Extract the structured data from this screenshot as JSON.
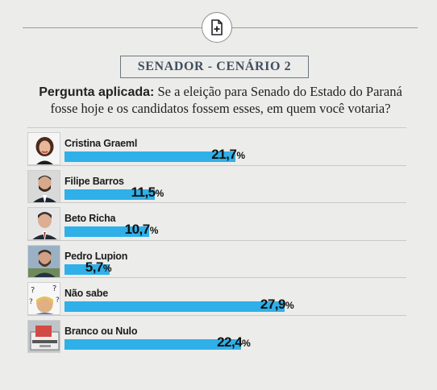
{
  "title": "SENADOR - CENÁRIO 2",
  "question": {
    "lead": "Pergunta aplicada:",
    "text": "Se a eleição para Senado do Estado do Paraná fosse hoje e os candidatos fossem esses, em quem você votaria?"
  },
  "chart_data": {
    "type": "bar",
    "orientation": "horizontal",
    "title": "SENADOR - CENÁRIO 2",
    "categories": [
      "Cristina Graeml",
      "Filipe Barros",
      "Beto Richa",
      "Pedro Lupion",
      "Não sabe",
      "Branco ou Nulo"
    ],
    "values": [
      21.7,
      11.5,
      10.7,
      5.7,
      27.9,
      22.4
    ],
    "value_labels": [
      "21,7",
      "11,5",
      "10,7",
      "5,7",
      "27,9",
      "22,4"
    ],
    "unit": "%",
    "bar_color": "#2fb0e8",
    "xlim": [
      0,
      30
    ]
  },
  "colors": {
    "background": "#ececeb",
    "bar": "#2fb0e8",
    "title_text": "#3f4f5e"
  },
  "icons": [
    "add-file-icon"
  ]
}
